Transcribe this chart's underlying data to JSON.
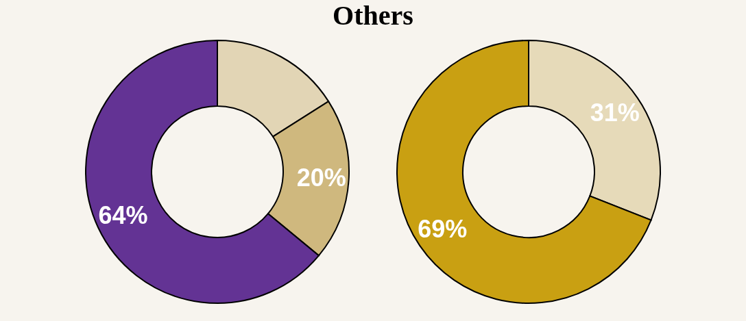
{
  "chart_data": [
    {
      "type": "donut",
      "title": "Others",
      "categories": [
        null,
        null,
        null
      ],
      "values": [
        16,
        20,
        64
      ],
      "colors": [
        "#e2d5b5",
        "#cfb87e",
        "#633394"
      ],
      "value_labels": [
        null,
        "20%",
        "64%"
      ]
    },
    {
      "type": "donut",
      "categories": [
        null,
        null
      ],
      "values": [
        31,
        69
      ],
      "colors": [
        "#e6dab9",
        "#c9a012"
      ],
      "value_labels": [
        "31%",
        "69%"
      ]
    }
  ]
}
